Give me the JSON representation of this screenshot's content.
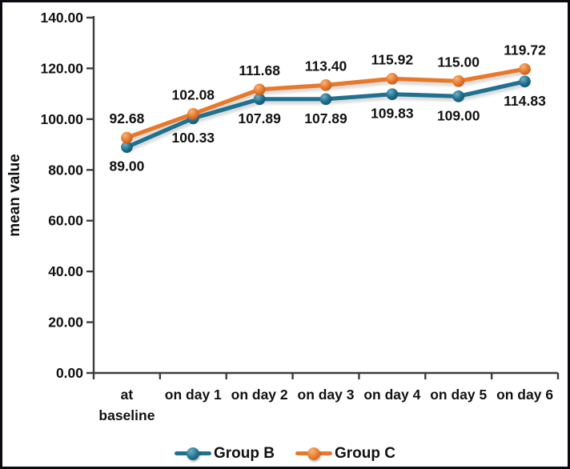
{
  "chart_data": {
    "type": "line",
    "title": "",
    "xlabel": "",
    "ylabel": "mean value",
    "ylim": [
      0,
      140
    ],
    "yticks": [
      0,
      20,
      40,
      60,
      80,
      100,
      120,
      140
    ],
    "ytick_label_decimals": 2,
    "categories": [
      "at\nbaseline",
      "on day 1",
      "on day 2",
      "on day 3",
      "on day 4",
      "on day 5",
      "on day 6"
    ],
    "series": [
      {
        "name": "Group B",
        "color": "#20708f",
        "color_light": "#6fb0c8",
        "color_dark": "#11506b",
        "label_position": "below",
        "values": [
          89.0,
          100.33,
          107.89,
          107.89,
          109.83,
          109.0,
          114.83
        ]
      },
      {
        "name": "Group C",
        "color": "#e8792c",
        "color_light": "#f6b579",
        "color_dark": "#b5591b",
        "label_position": "above",
        "values": [
          92.68,
          102.08,
          111.68,
          113.4,
          115.92,
          115.0,
          119.72
        ]
      }
    ],
    "value_label_decimals": 2,
    "legend_position": "bottom",
    "grid": false,
    "axis_color": "#3d3d3d",
    "text_color": "#111111",
    "background": "#ffffff",
    "frame_color": "#0a0a10"
  }
}
